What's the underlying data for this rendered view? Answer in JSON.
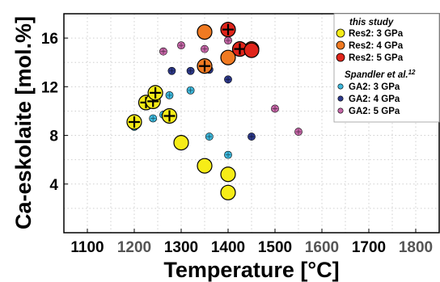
{
  "chart_data": {
    "type": "scatter",
    "xlabel": "Temperature [°C]",
    "ylabel": "Ca-eskolaite [mol.%]",
    "xlim": [
      1050,
      1850
    ],
    "ylim": [
      0,
      18
    ],
    "x_ticks": [
      {
        "label": "1100",
        "value": 1100,
        "color": "#000000"
      },
      {
        "label": "1200",
        "value": 1200,
        "color": "#555555"
      },
      {
        "label": "1300",
        "value": 1300,
        "color": "#000000"
      },
      {
        "label": "1400",
        "value": 1400,
        "color": "#000000"
      },
      {
        "label": "1500",
        "value": 1500,
        "color": "#000000"
      },
      {
        "label": "1600",
        "value": 1600,
        "color": "#555555"
      },
      {
        "label": "1700",
        "value": 1700,
        "color": "#000000"
      },
      {
        "label": "1800",
        "value": 1800,
        "color": "#555555"
      }
    ],
    "y_ticks": [
      {
        "label": "4",
        "value": 4
      },
      {
        "label": "8",
        "value": 8
      },
      {
        "label": "12",
        "value": 12
      },
      {
        "label": "16",
        "value": 16
      }
    ],
    "grid": true,
    "legend_position": "top-right",
    "legend": {
      "group1_title": "this study",
      "group2_title": "Spandler et al.",
      "group2_superscript": "12"
    },
    "series": [
      {
        "name": "GA2: 3 GPa",
        "group": 2,
        "color": "#3eb8dc",
        "marker": "small",
        "points": [
          [
            1200,
            8.7
          ],
          [
            1240,
            9.4
          ],
          [
            1262,
            9.7
          ],
          [
            1275,
            11.3
          ],
          [
            1320,
            11.7
          ],
          [
            1360,
            7.9
          ],
          [
            1400,
            6.4
          ]
        ]
      },
      {
        "name": "GA2: 4 GPa",
        "group": 2,
        "color": "#2e3a8c",
        "marker": "small",
        "points": [
          [
            1280,
            13.3
          ],
          [
            1320,
            13.3
          ],
          [
            1360,
            13.4
          ],
          [
            1400,
            12.6
          ],
          [
            1450,
            7.9
          ]
        ]
      },
      {
        "name": "GA2: 5 GPa",
        "group": 2,
        "color": "#c667a8",
        "marker": "small",
        "points": [
          [
            1262,
            14.9
          ],
          [
            1300,
            15.4
          ],
          [
            1350,
            15.1
          ],
          [
            1400,
            15.8
          ],
          [
            1500,
            10.2
          ],
          [
            1550,
            8.3
          ]
        ]
      },
      {
        "name": "Res2: 3 GPa",
        "group": 1,
        "color": "#f6ec17",
        "marker": "large",
        "points": [
          [
            1200,
            9.1
          ],
          [
            1225,
            10.7
          ],
          [
            1240,
            10.8
          ],
          [
            1245,
            11.5
          ],
          [
            1275,
            9.6
          ],
          [
            1300,
            7.4
          ],
          [
            1350,
            5.5
          ],
          [
            1400,
            4.8
          ],
          [
            1400,
            3.3
          ]
        ],
        "plus_marked": [
          true,
          true,
          true,
          true,
          true,
          false,
          false,
          false,
          false
        ]
      },
      {
        "name": "Res2: 4 GPa",
        "group": 1,
        "color": "#f07a22",
        "marker": "large",
        "points": [
          [
            1350,
            16.5
          ],
          [
            1350,
            13.7
          ],
          [
            1400,
            14.4
          ],
          [
            1450,
            15.1
          ]
        ],
        "plus_marked": [
          false,
          true,
          false,
          false
        ]
      },
      {
        "name": "Res2: 5 GPa",
        "group": 1,
        "color": "#e0251b",
        "marker": "large",
        "points": [
          [
            1400,
            16.7
          ],
          [
            1425,
            15.1
          ],
          [
            1450,
            15.0
          ]
        ],
        "plus_marked": [
          true,
          true,
          false
        ]
      }
    ]
  }
}
